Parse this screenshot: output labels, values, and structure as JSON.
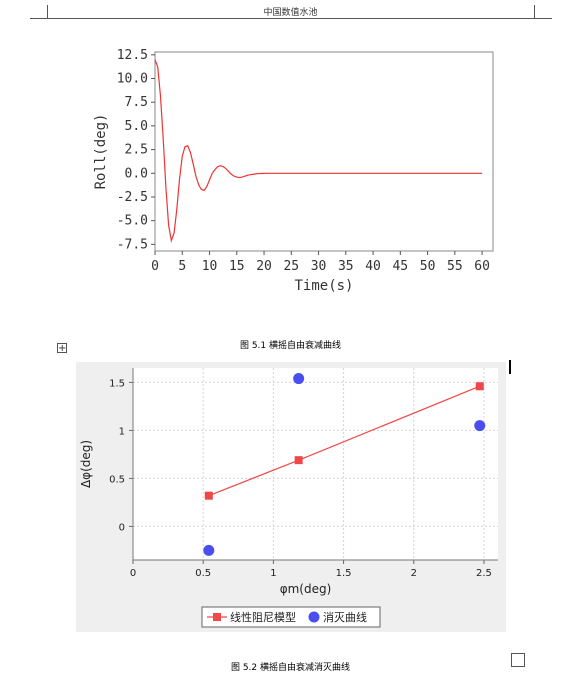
{
  "page": {
    "header_title": "中国数值水池",
    "caption_1": "图 5.1 横摇自由衰减曲线",
    "caption_2": "图 5.2 横摇自由衰减消灭曲线"
  },
  "chart_data": [
    {
      "type": "line",
      "title": "",
      "xlabel": "Time(s)",
      "ylabel": "Roll(deg)",
      "xlim": [
        0,
        62
      ],
      "ylim": [
        -8.2,
        12.8
      ],
      "x_ticks": [
        "0",
        "5",
        "10",
        "15",
        "20",
        "25",
        "30",
        "35",
        "40",
        "45",
        "50",
        "55",
        "60"
      ],
      "y_ticks": [
        "12.5",
        "10.0",
        "7.5",
        "5.0",
        "2.5",
        "0.0",
        "-2.5",
        "-5.0",
        "-7.5"
      ],
      "grid": false,
      "colors": {
        "line": "#ee3333"
      },
      "series": [
        {
          "x": [
            0,
            0.5,
            1.0,
            1.5,
            2.0,
            2.5,
            3.0,
            3.5,
            4.0,
            4.5,
            5.0,
            5.5,
            6.0,
            6.5,
            7.0,
            7.5,
            8.0,
            8.5,
            9.0,
            9.5,
            10.0,
            10.5,
            11.0,
            11.5,
            12.0,
            12.5,
            13.0,
            13.5,
            14.0,
            14.5,
            15.0,
            15.5,
            16.0,
            16.5,
            17.0,
            17.5,
            18.0,
            18.5,
            19.0,
            19.5,
            20.0,
            20.5,
            21.0,
            22.0,
            23.0,
            24.0,
            25.0,
            30.0,
            40.0,
            50.0,
            60.0
          ],
          "y": [
            12.0,
            11.2,
            8.2,
            3.7,
            -1.5,
            -5.5,
            -7.1,
            -6.3,
            -3.8,
            -0.6,
            1.8,
            2.8,
            2.9,
            2.2,
            1.0,
            -0.3,
            -1.2,
            -1.7,
            -1.8,
            -1.4,
            -0.7,
            0.0,
            0.4,
            0.7,
            0.8,
            0.7,
            0.5,
            0.2,
            -0.1,
            -0.3,
            -0.4,
            -0.45,
            -0.4,
            -0.3,
            -0.2,
            -0.15,
            -0.1,
            -0.06,
            -0.03,
            -0.02,
            -0.01,
            0.0,
            0.0,
            0.0,
            0.0,
            0.0,
            0.0,
            0.0,
            0.0,
            0.0,
            0.0
          ]
        }
      ]
    },
    {
      "type": "scatter",
      "title": "",
      "xlabel": "φm(deg)",
      "ylabel": "Δφ(deg)",
      "xlim": [
        0,
        2.6
      ],
      "ylim": [
        -0.35,
        1.65
      ],
      "x_ticks": [
        "0",
        "0.5",
        "1",
        "1.5",
        "2",
        "2.5"
      ],
      "y_ticks": [
        "1.5",
        "1",
        "0.5",
        "0"
      ],
      "grid": true,
      "legend_position": "bottom",
      "colors": {
        "linear_model": "#f04848",
        "extinction_curve": "#4a4ef0",
        "background": "#efefef"
      },
      "series": [
        {
          "name": "线性阻尼模型",
          "style": "line-square",
          "x": [
            0.54,
            1.18,
            2.47
          ],
          "y": [
            0.32,
            0.69,
            1.46
          ]
        },
        {
          "name": "消灭曲线",
          "style": "circle",
          "x": [
            0.54,
            1.18,
            2.47
          ],
          "y": [
            -0.25,
            1.54,
            1.05
          ]
        }
      ]
    }
  ]
}
